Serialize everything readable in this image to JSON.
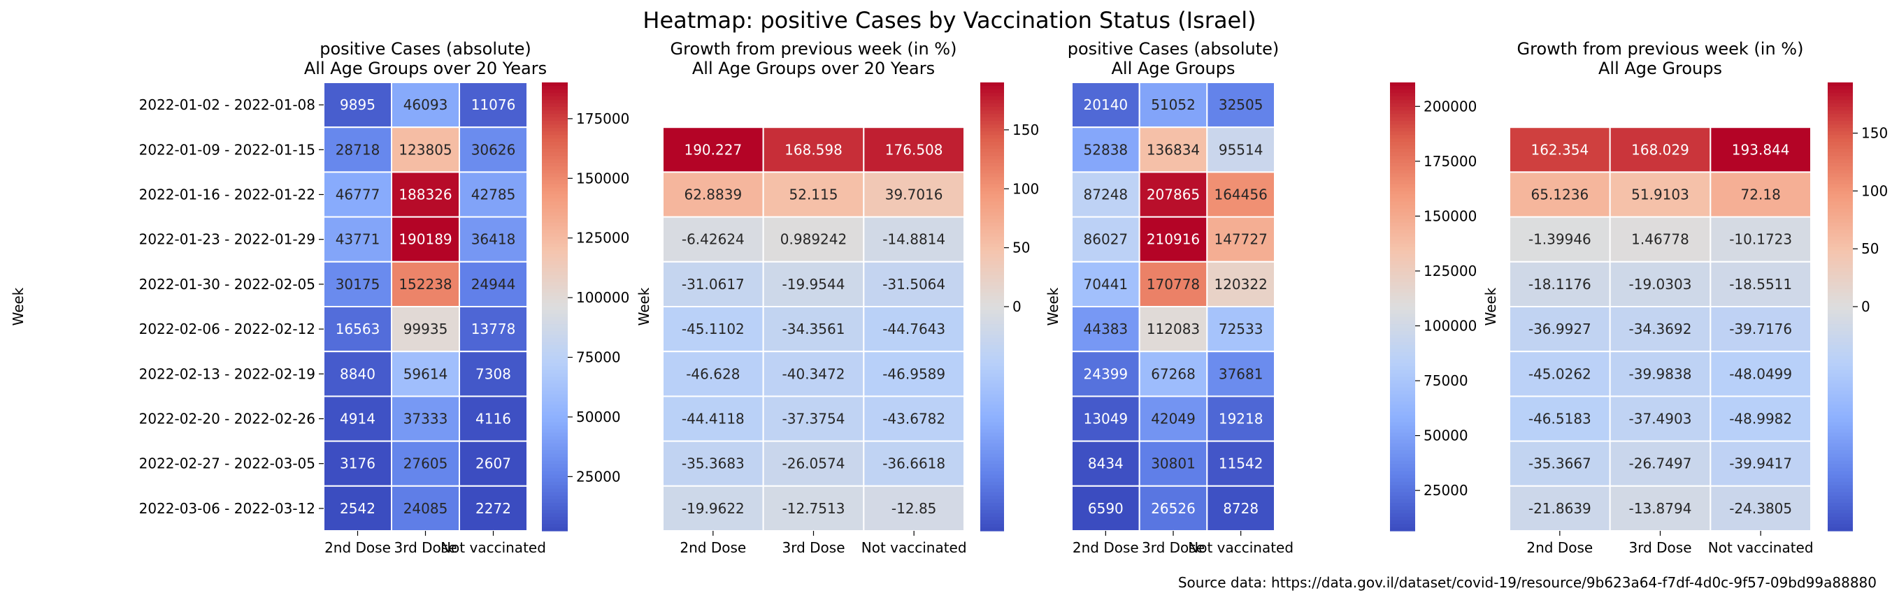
{
  "figure": {
    "title": "Heatmap: positive Cases by Vaccination Status (Israel)",
    "source": "Source data: https://data.gov.il/dataset/covid-19/resource/9b623a64-f7df-4d0c-9f57-09bd99a88880"
  },
  "chart_data": [
    {
      "type": "heatmap",
      "title": "positive Cases (absolute)",
      "subtitle": "All Age Groups over 20 Years",
      "ylabel": "Week",
      "show_row_labels": true,
      "columns": [
        "2nd Dose",
        "3rd Dose",
        "Not vaccinated"
      ],
      "rows": [
        "2022-01-02 - 2022-01-08",
        "2022-01-09 - 2022-01-15",
        "2022-01-16 - 2022-01-22",
        "2022-01-23 - 2022-01-29",
        "2022-01-30 - 2022-02-05",
        "2022-02-06 - 2022-02-12",
        "2022-02-13 - 2022-02-19",
        "2022-02-20 - 2022-02-26",
        "2022-02-27 - 2022-03-05",
        "2022-03-06 - 2022-03-12"
      ],
      "values": [
        [
          9895,
          46093,
          11076
        ],
        [
          28718,
          123805,
          30626
        ],
        [
          46777,
          188326,
          42785
        ],
        [
          43771,
          190189,
          36418
        ],
        [
          30175,
          152238,
          24944
        ],
        [
          16563,
          99935,
          13778
        ],
        [
          8840,
          59614,
          7308
        ],
        [
          4914,
          37333,
          4116
        ],
        [
          3176,
          27605,
          2607
        ],
        [
          2542,
          24085,
          2272
        ]
      ],
      "labels": [
        [
          "9895",
          "46093",
          "11076"
        ],
        [
          "28718",
          "123805",
          "30626"
        ],
        [
          "46777",
          "188326",
          "42785"
        ],
        [
          "43771",
          "190189",
          "36418"
        ],
        [
          "30175",
          "152238",
          "24944"
        ],
        [
          "16563",
          "99935",
          "13778"
        ],
        [
          "8840",
          "59614",
          "7308"
        ],
        [
          "4914",
          "37333",
          "4116"
        ],
        [
          "3176",
          "27605",
          "2607"
        ],
        [
          "2542",
          "24085",
          "2272"
        ]
      ],
      "colorbar": {
        "colormap": "coolwarm",
        "vmin": 2272,
        "vmax": 190189,
        "ticks": [
          25000,
          50000,
          75000,
          100000,
          125000,
          150000,
          175000
        ]
      }
    },
    {
      "type": "heatmap",
      "title": "Growth from previous week (in %)",
      "subtitle": "All Age Groups over 20 Years",
      "ylabel": "Week",
      "show_row_labels": false,
      "columns": [
        "2nd Dose",
        "3rd Dose",
        "Not vaccinated"
      ],
      "rows": [
        "2022-01-02 - 2022-01-08",
        "2022-01-09 - 2022-01-15",
        "2022-01-16 - 2022-01-22",
        "2022-01-23 - 2022-01-29",
        "2022-01-30 - 2022-02-05",
        "2022-02-06 - 2022-02-12",
        "2022-02-13 - 2022-02-19",
        "2022-02-20 - 2022-02-26",
        "2022-02-27 - 2022-03-05",
        "2022-03-06 - 2022-03-12"
      ],
      "values": [
        [
          null,
          null,
          null
        ],
        [
          190.227,
          168.598,
          176.508
        ],
        [
          62.8839,
          52.115,
          39.7016
        ],
        [
          -6.42624,
          0.989242,
          -14.8814
        ],
        [
          -31.0617,
          -19.9544,
          -31.5064
        ],
        [
          -45.1102,
          -34.3561,
          -44.7643
        ],
        [
          -46.628,
          -40.3472,
          -46.9589
        ],
        [
          -44.4118,
          -37.3754,
          -43.6782
        ],
        [
          -35.3683,
          -26.0574,
          -36.6618
        ],
        [
          -19.9622,
          -12.7513,
          -12.85
        ]
      ],
      "labels": [
        [
          "",
          "",
          ""
        ],
        [
          "190.227",
          "168.598",
          "176.508"
        ],
        [
          "62.8839",
          "52.115",
          "39.7016"
        ],
        [
          "-6.42624",
          "0.989242",
          "-14.8814"
        ],
        [
          "-31.0617",
          "-19.9544",
          "-31.5064"
        ],
        [
          "-45.1102",
          "-34.3561",
          "-44.7643"
        ],
        [
          "-46.628",
          "-40.3472",
          "-46.9589"
        ],
        [
          "-44.4118",
          "-37.3754",
          "-43.6782"
        ],
        [
          "-35.3683",
          "-26.0574",
          "-36.6618"
        ],
        [
          "-19.9622",
          "-12.7513",
          "-12.85"
        ]
      ],
      "colorbar": {
        "colormap": "coolwarm",
        "vmin": -46.9589,
        "vmax": 190.227,
        "center": 0,
        "ticks": [
          0,
          50,
          100,
          150
        ]
      }
    },
    {
      "type": "heatmap",
      "title": "positive Cases (absolute)",
      "subtitle": "All Age Groups",
      "ylabel": "Week",
      "show_row_labels": false,
      "columns": [
        "2nd Dose",
        "3rd Dose",
        "Not vaccinated"
      ],
      "rows": [
        "2022-01-02 - 2022-01-08",
        "2022-01-09 - 2022-01-15",
        "2022-01-16 - 2022-01-22",
        "2022-01-23 - 2022-01-29",
        "2022-01-30 - 2022-02-05",
        "2022-02-06 - 2022-02-12",
        "2022-02-13 - 2022-02-19",
        "2022-02-20 - 2022-02-26",
        "2022-02-27 - 2022-03-05",
        "2022-03-06 - 2022-03-12"
      ],
      "values": [
        [
          20140,
          51052,
          32505
        ],
        [
          52838,
          136834,
          95514
        ],
        [
          87248,
          207865,
          164456
        ],
        [
          86027,
          210916,
          147727
        ],
        [
          70441,
          170778,
          120322
        ],
        [
          44383,
          112083,
          72533
        ],
        [
          24399,
          67268,
          37681
        ],
        [
          13049,
          42049,
          19218
        ],
        [
          8434,
          30801,
          11542
        ],
        [
          6590,
          26526,
          8728
        ]
      ],
      "labels": [
        [
          "20140",
          "51052",
          "32505"
        ],
        [
          "52838",
          "136834",
          "95514"
        ],
        [
          "87248",
          "207865",
          "164456"
        ],
        [
          "86027",
          "210916",
          "147727"
        ],
        [
          "70441",
          "170778",
          "120322"
        ],
        [
          "44383",
          "112083",
          "72533"
        ],
        [
          "24399",
          "67268",
          "37681"
        ],
        [
          "13049",
          "42049",
          "19218"
        ],
        [
          "8434",
          "30801",
          "11542"
        ],
        [
          "6590",
          "26526",
          "8728"
        ]
      ],
      "colorbar": {
        "colormap": "coolwarm",
        "vmin": 6590,
        "vmax": 210916,
        "ticks": [
          25000,
          50000,
          75000,
          100000,
          125000,
          150000,
          175000,
          200000
        ]
      }
    },
    {
      "type": "heatmap",
      "title": "Growth from previous week (in %)",
      "subtitle": "All Age Groups",
      "ylabel": "Week",
      "show_row_labels": false,
      "columns": [
        "2nd Dose",
        "3rd Dose",
        "Not vaccinated"
      ],
      "rows": [
        "2022-01-02 - 2022-01-08",
        "2022-01-09 - 2022-01-15",
        "2022-01-16 - 2022-01-22",
        "2022-01-23 - 2022-01-29",
        "2022-01-30 - 2022-02-05",
        "2022-02-06 - 2022-02-12",
        "2022-02-13 - 2022-02-19",
        "2022-02-20 - 2022-02-26",
        "2022-02-27 - 2022-03-05",
        "2022-03-06 - 2022-03-12"
      ],
      "values": [
        [
          null,
          null,
          null
        ],
        [
          162.354,
          168.029,
          193.844
        ],
        [
          65.1236,
          51.9103,
          72.18
        ],
        [
          -1.39946,
          1.46778,
          -10.1723
        ],
        [
          -18.1176,
          -19.0303,
          -18.5511
        ],
        [
          -36.9927,
          -34.3692,
          -39.7176
        ],
        [
          -45.0262,
          -39.9838,
          -48.0499
        ],
        [
          -46.5183,
          -37.4903,
          -48.9982
        ],
        [
          -35.3667,
          -26.7497,
          -39.9417
        ],
        [
          -21.8639,
          -13.8794,
          -24.3805
        ]
      ],
      "labels": [
        [
          "",
          "",
          ""
        ],
        [
          "162.354",
          "168.029",
          "193.844"
        ],
        [
          "65.1236",
          "51.9103",
          "72.18"
        ],
        [
          "-1.39946",
          "1.46778",
          "-10.1723"
        ],
        [
          "-18.1176",
          "-19.0303",
          "-18.5511"
        ],
        [
          "-36.9927",
          "-34.3692",
          "-39.7176"
        ],
        [
          "-45.0262",
          "-39.9838",
          "-48.0499"
        ],
        [
          "-46.5183",
          "-37.4903",
          "-48.9982"
        ],
        [
          "-35.3667",
          "-26.7497",
          "-39.9417"
        ],
        [
          "-21.8639",
          "-13.8794",
          "-24.3805"
        ]
      ],
      "colorbar": {
        "colormap": "coolwarm",
        "vmin": -48.9982,
        "vmax": 193.844,
        "center": 0,
        "ticks": [
          0,
          50,
          100,
          150
        ]
      }
    }
  ]
}
